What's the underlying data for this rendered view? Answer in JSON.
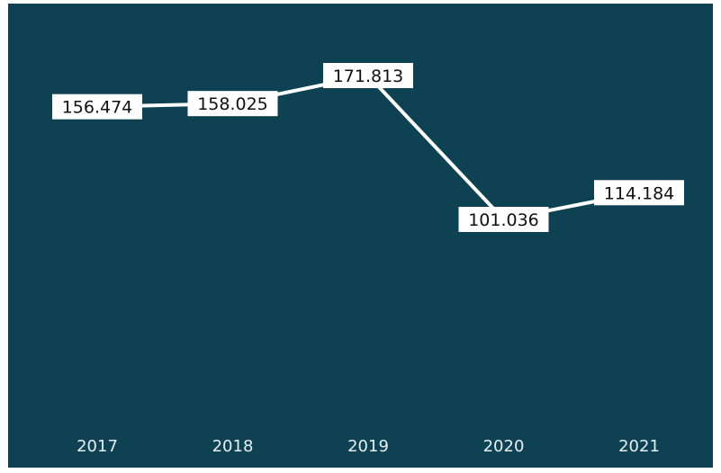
{
  "chart_data": {
    "type": "line",
    "title": "",
    "xlabel": "",
    "ylabel": "",
    "categories": [
      "2017",
      "2018",
      "2019",
      "2020",
      "2021"
    ],
    "series": [
      {
        "values": [
          156.474,
          158.025,
          171.813,
          101.036,
          114.184
        ],
        "labels": [
          "156.474",
          "158.025",
          "171.813",
          "101.036",
          "114.184"
        ]
      }
    ],
    "grid": false,
    "legend": "none",
    "colors": {
      "background": "#0e4253",
      "line": "#ffffff",
      "label_box": "#ffffff",
      "label_text": "#111111",
      "tick_text": "#e6eef1"
    }
  }
}
